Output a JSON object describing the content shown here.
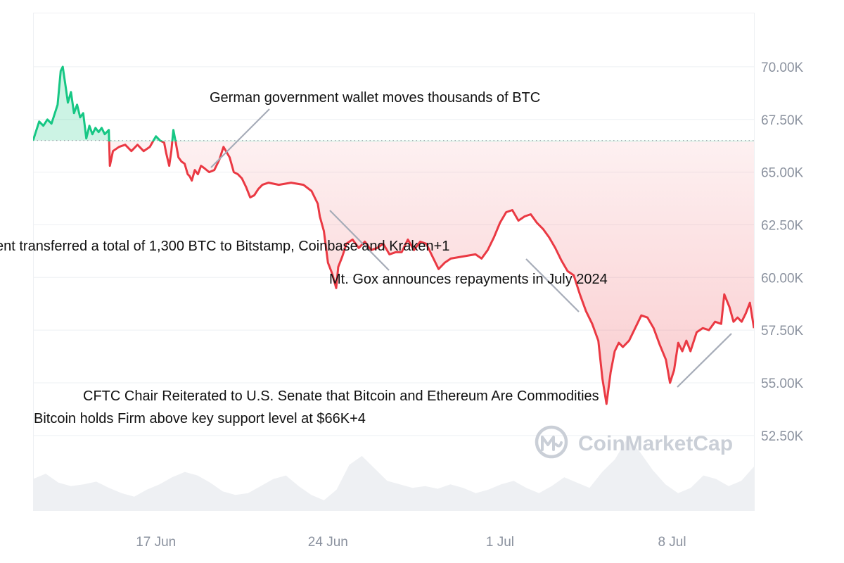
{
  "chart_data": {
    "type": "area",
    "series_name": "",
    "y_unit": "USD",
    "ylim": [
      50000,
      72500
    ],
    "y_ticks": [
      {
        "value": 70000,
        "label": "70.00K"
      },
      {
        "value": 67500,
        "label": "67.50K"
      },
      {
        "value": 65000,
        "label": "65.00K"
      },
      {
        "value": 62500,
        "label": "62.50K"
      },
      {
        "value": 60000,
        "label": "60.00K"
      },
      {
        "value": 57500,
        "label": "57.50K"
      },
      {
        "value": 55000,
        "label": "55.00K"
      },
      {
        "value": 52500,
        "label": "52.50K"
      }
    ],
    "xlim": [
      "2024-06-12",
      "2024-07-11"
    ],
    "x_ticks": [
      {
        "date": "2024-06-17",
        "label": "17 Jun"
      },
      {
        "date": "2024-06-24",
        "label": "24 Jun"
      },
      {
        "date": "2024-07-01",
        "label": "1 Jul"
      },
      {
        "date": "2024-07-08",
        "label": "8 Jul"
      }
    ],
    "baseline": 66500,
    "positive_color": "#16c784",
    "negative_color": "#ea3943",
    "baseline_color": "#9aa0a8",
    "grid": true,
    "price_points": [
      [
        "2024-06-12 00:00",
        66500
      ],
      [
        "2024-06-12 06:00",
        67400
      ],
      [
        "2024-06-12 10:00",
        67200
      ],
      [
        "2024-06-12 14:00",
        67500
      ],
      [
        "2024-06-12 18:00",
        67300
      ],
      [
        "2024-06-12 20:00",
        67600
      ],
      [
        "2024-06-13 00:00",
        68200
      ],
      [
        "2024-06-13 03:00",
        69800
      ],
      [
        "2024-06-13 05:00",
        70000
      ],
      [
        "2024-06-13 08:00",
        69000
      ],
      [
        "2024-06-13 10:00",
        68300
      ],
      [
        "2024-06-13 13:00",
        68800
      ],
      [
        "2024-06-13 16:00",
        67800
      ],
      [
        "2024-06-13 19:00",
        68200
      ],
      [
        "2024-06-13 22:00",
        67600
      ],
      [
        "2024-06-14 01:00",
        67800
      ],
      [
        "2024-06-14 04:00",
        66600
      ],
      [
        "2024-06-14 07:00",
        67200
      ],
      [
        "2024-06-14 10:00",
        66800
      ],
      [
        "2024-06-14 13:00",
        67100
      ],
      [
        "2024-06-14 16:00",
        66900
      ],
      [
        "2024-06-14 19:00",
        67100
      ],
      [
        "2024-06-14 22:00",
        66800
      ],
      [
        "2024-06-15 02:00",
        67000
      ],
      [
        "2024-06-15 03:00",
        65300
      ],
      [
        "2024-06-15 06:00",
        66000
      ],
      [
        "2024-06-15 12:00",
        66200
      ],
      [
        "2024-06-15 18:00",
        66300
      ],
      [
        "2024-06-16 00:00",
        66000
      ],
      [
        "2024-06-16 06:00",
        66300
      ],
      [
        "2024-06-16 12:00",
        66000
      ],
      [
        "2024-06-16 18:00",
        66200
      ],
      [
        "2024-06-17 00:00",
        66700
      ],
      [
        "2024-06-17 04:00",
        66500
      ],
      [
        "2024-06-17 08:00",
        66400
      ],
      [
        "2024-06-17 10:00",
        65900
      ],
      [
        "2024-06-17 13:00",
        65300
      ],
      [
        "2024-06-17 15:00",
        66000
      ],
      [
        "2024-06-17 17:00",
        67000
      ],
      [
        "2024-06-17 19:00",
        66500
      ],
      [
        "2024-06-17 22:00",
        65700
      ],
      [
        "2024-06-18 01:00",
        65500
      ],
      [
        "2024-06-18 04:00",
        65400
      ],
      [
        "2024-06-18 07:00",
        64900
      ],
      [
        "2024-06-18 09:00",
        64800
      ],
      [
        "2024-06-18 11:00",
        64600
      ],
      [
        "2024-06-18 14:00",
        65100
      ],
      [
        "2024-06-18 17:00",
        64900
      ],
      [
        "2024-06-18 20:00",
        65300
      ],
      [
        "2024-06-18 23:00",
        65200
      ],
      [
        "2024-06-19 04:00",
        65000
      ],
      [
        "2024-06-19 09:00",
        65100
      ],
      [
        "2024-06-19 14:00",
        65600
      ],
      [
        "2024-06-19 18:00",
        66200
      ],
      [
        "2024-06-20 00:00",
        65700
      ],
      [
        "2024-06-20 04:00",
        65000
      ],
      [
        "2024-06-20 08:00",
        64900
      ],
      [
        "2024-06-20 12:00",
        64700
      ],
      [
        "2024-06-20 16:00",
        64300
      ],
      [
        "2024-06-20 20:00",
        63800
      ],
      [
        "2024-06-21 00:00",
        63900
      ],
      [
        "2024-06-21 04:00",
        64200
      ],
      [
        "2024-06-21 08:00",
        64400
      ],
      [
        "2024-06-21 14:00",
        64500
      ],
      [
        "2024-06-22 00:00",
        64400
      ],
      [
        "2024-06-22 12:00",
        64500
      ],
      [
        "2024-06-23 00:00",
        64400
      ],
      [
        "2024-06-23 08:00",
        64100
      ],
      [
        "2024-06-23 14:00",
        63500
      ],
      [
        "2024-06-23 16:00",
        62900
      ],
      [
        "2024-06-23 20:00",
        62200
      ],
      [
        "2024-06-24 00:00",
        60700
      ],
      [
        "2024-06-24 04:00",
        60200
      ],
      [
        "2024-06-24 08:00",
        59500
      ],
      [
        "2024-06-24 10:00",
        60500
      ],
      [
        "2024-06-24 14:00",
        61000
      ],
      [
        "2024-06-24 18:00",
        61600
      ],
      [
        "2024-06-25 00:00",
        61800
      ],
      [
        "2024-06-25 06:00",
        61400
      ],
      [
        "2024-06-25 12:00",
        61700
      ],
      [
        "2024-06-25 18:00",
        61300
      ],
      [
        "2024-06-26 00:00",
        61400
      ],
      [
        "2024-06-26 06:00",
        61600
      ],
      [
        "2024-06-26 12:00",
        61100
      ],
      [
        "2024-06-26 18:00",
        61200
      ],
      [
        "2024-06-27 00:00",
        61200
      ],
      [
        "2024-06-27 06:00",
        61800
      ],
      [
        "2024-06-27 12:00",
        61300
      ],
      [
        "2024-06-27 18:00",
        61700
      ],
      [
        "2024-06-28 00:00",
        61600
      ],
      [
        "2024-06-28 06:00",
        61000
      ],
      [
        "2024-06-28 12:00",
        60400
      ],
      [
        "2024-06-28 18:00",
        60700
      ],
      [
        "2024-06-29 00:00",
        60900
      ],
      [
        "2024-06-29 12:00",
        61000
      ],
      [
        "2024-06-30 00:00",
        61100
      ],
      [
        "2024-06-30 06:00",
        60900
      ],
      [
        "2024-06-30 12:00",
        61300
      ],
      [
        "2024-06-30 18:00",
        61900
      ],
      [
        "2024-07-01 00:00",
        62600
      ],
      [
        "2024-07-01 06:00",
        63100
      ],
      [
        "2024-07-01 12:00",
        63200
      ],
      [
        "2024-07-01 18:00",
        62700
      ],
      [
        "2024-07-02 00:00",
        62900
      ],
      [
        "2024-07-02 06:00",
        63000
      ],
      [
        "2024-07-02 12:00",
        62600
      ],
      [
        "2024-07-02 18:00",
        62300
      ],
      [
        "2024-07-03 00:00",
        61900
      ],
      [
        "2024-07-03 06:00",
        61400
      ],
      [
        "2024-07-03 12:00",
        60800
      ],
      [
        "2024-07-03 18:00",
        60300
      ],
      [
        "2024-07-04 00:00",
        60100
      ],
      [
        "2024-07-04 06:00",
        59200
      ],
      [
        "2024-07-04 12:00",
        58400
      ],
      [
        "2024-07-04 18:00",
        57800
      ],
      [
        "2024-07-05 00:00",
        57000
      ],
      [
        "2024-07-05 04:00",
        55200
      ],
      [
        "2024-07-05 08:00",
        54000
      ],
      [
        "2024-07-05 12:00",
        55500
      ],
      [
        "2024-07-05 16:00",
        56500
      ],
      [
        "2024-07-05 20:00",
        56900
      ],
      [
        "2024-07-06 00:00",
        56700
      ],
      [
        "2024-07-06 06:00",
        57000
      ],
      [
        "2024-07-06 12:00",
        57600
      ],
      [
        "2024-07-06 18:00",
        58200
      ],
      [
        "2024-07-07 00:00",
        58100
      ],
      [
        "2024-07-07 06:00",
        57600
      ],
      [
        "2024-07-07 12:00",
        56800
      ],
      [
        "2024-07-07 18:00",
        56100
      ],
      [
        "2024-07-07 22:00",
        55000
      ],
      [
        "2024-07-08 02:00",
        55600
      ],
      [
        "2024-07-08 06:00",
        56900
      ],
      [
        "2024-07-08 10:00",
        56500
      ],
      [
        "2024-07-08 14:00",
        57000
      ],
      [
        "2024-07-08 18:00",
        56500
      ],
      [
        "2024-07-09 00:00",
        57400
      ],
      [
        "2024-07-09 06:00",
        57600
      ],
      [
        "2024-07-09 12:00",
        57500
      ],
      [
        "2024-07-09 18:00",
        57900
      ],
      [
        "2024-07-10 00:00",
        57800
      ],
      [
        "2024-07-10 03:00",
        59200
      ],
      [
        "2024-07-10 08:00",
        58600
      ],
      [
        "2024-07-10 12:00",
        57900
      ],
      [
        "2024-07-10 16:00",
        58100
      ],
      [
        "2024-07-10 20:00",
        57900
      ],
      [
        "2024-07-11 00:00",
        58300
      ],
      [
        "2024-07-11 04:00",
        58800
      ],
      [
        "2024-07-11 08:00",
        57600
      ]
    ],
    "volume_level": [
      0.36,
      0.42,
      0.32,
      0.28,
      0.3,
      0.33,
      0.26,
      0.2,
      0.16,
      0.24,
      0.3,
      0.38,
      0.44,
      0.4,
      0.32,
      0.22,
      0.18,
      0.2,
      0.28,
      0.36,
      0.4,
      0.28,
      0.18,
      0.12,
      0.24,
      0.52,
      0.62,
      0.48,
      0.34,
      0.3,
      0.26,
      0.28,
      0.25,
      0.3,
      0.26,
      0.2,
      0.24,
      0.3,
      0.34,
      0.26,
      0.2,
      0.28,
      0.38,
      0.32,
      0.26,
      0.44,
      0.58,
      0.82,
      0.66,
      0.46,
      0.3,
      0.2,
      0.26,
      0.4,
      0.36,
      0.28,
      0.34,
      0.5
    ],
    "annotations": [
      {
        "text": "German government wallet moves thousands of BTC",
        "date": "2024-06-18 06:00",
        "price": 65400
      },
      {
        "text": "ent transferred a total of 1,300 BTC to Bitstamp, Coinbase and Kraken+1",
        "date": "2024-06-24 00:00",
        "price": 60200
      },
      {
        "text": "Mt. Gox announces repayments in July 2024",
        "date": "2024-07-04 08:00",
        "price": 58000
      },
      {
        "text": "CFTC Chair Reiterated to U.S. Senate that Bitcoin and Ethereum Are Commodities",
        "date": "2024-07-08 00:00",
        "price": 55000
      },
      {
        "text": "Bitcoin holds Firm above key support level at $66K+4",
        "date": "2024-07-10 20:00",
        "price": 57700
      }
    ]
  },
  "watermark": {
    "text": "CoinMarketCap",
    "icon": "coinmarketcap-logo-icon"
  }
}
